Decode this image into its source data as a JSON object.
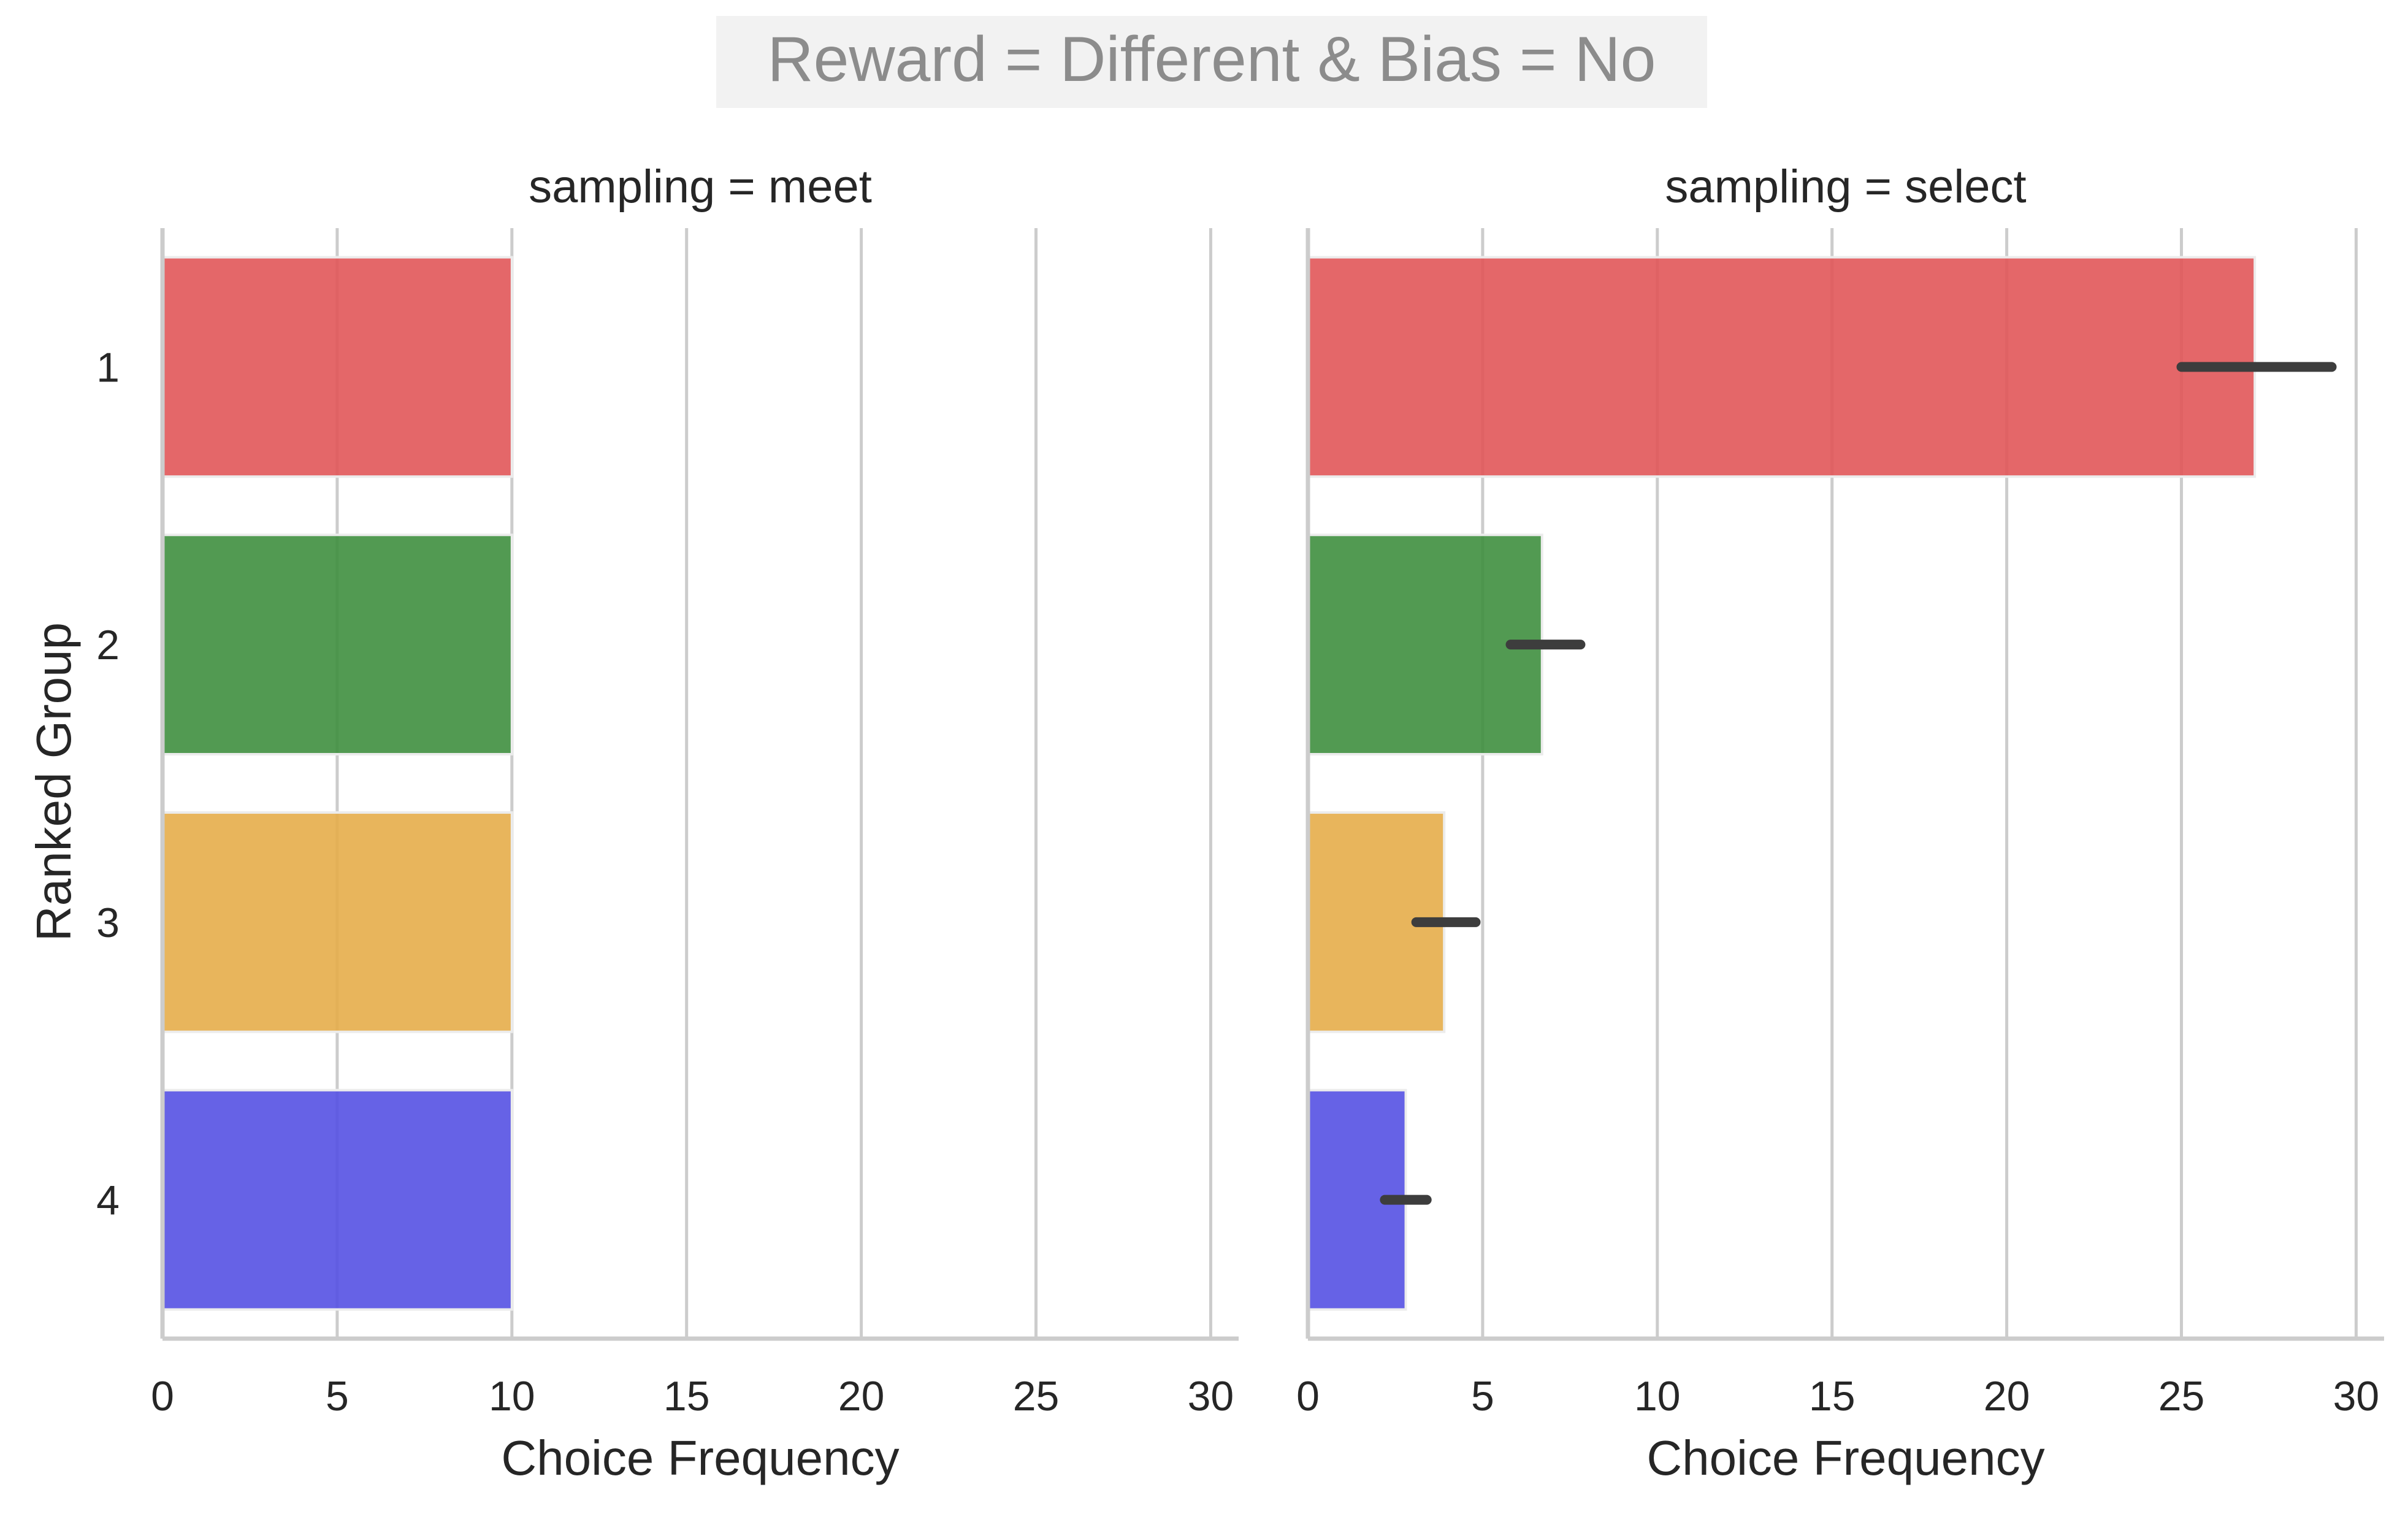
{
  "chart_data": {
    "type": "bar",
    "orientation": "horizontal",
    "title": "Reward = Different & Bias = No",
    "ylabel": "Ranked Group",
    "categories": [
      "1",
      "2",
      "3",
      "4"
    ],
    "colors": [
      "#e15759",
      "#3f8f3f",
      "#e6ad4a",
      "#5551e3"
    ],
    "grid": true,
    "panels": [
      {
        "title": "sampling = meet",
        "xlabel": "Choice Frequency",
        "xlim": [
          0,
          30.8
        ],
        "xticks": [
          0,
          5,
          10,
          15,
          20,
          25,
          30
        ],
        "values": [
          10,
          10,
          10,
          10
        ],
        "errors": [
          null,
          null,
          null,
          null
        ]
      },
      {
        "title": "sampling = select",
        "xlabel": "Choice Frequency",
        "xlim": [
          0,
          30.8
        ],
        "xticks": [
          0,
          5,
          10,
          15,
          20,
          25,
          30
        ],
        "values": [
          27.1,
          6.7,
          3.9,
          2.8
        ],
        "errors": [
          [
            25.0,
            29.3
          ],
          [
            5.8,
            7.8
          ],
          [
            3.1,
            4.8
          ],
          [
            2.2,
            3.4
          ]
        ]
      }
    ]
  }
}
